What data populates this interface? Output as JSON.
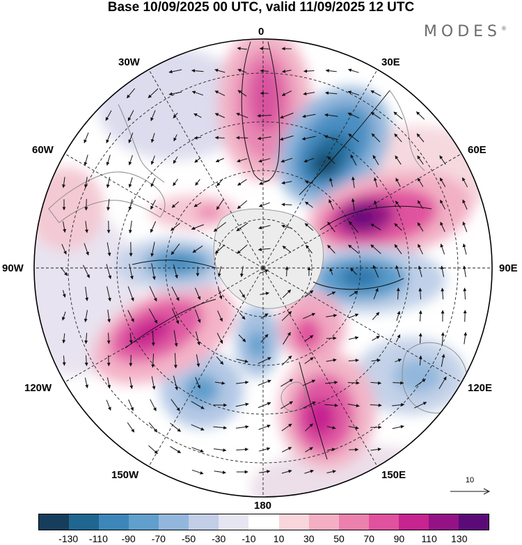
{
  "title": "Base 10/09/2025 00 UTC, valid 11/09/2025 12 UTC",
  "brand": "MODES",
  "brand_mark": "®",
  "longitude_labels": {
    "lon_0": "0",
    "lon_30e": "30E",
    "lon_60e": "60E",
    "lon_90e": "90E",
    "lon_120e": "120E",
    "lon_150e": "150E",
    "lon_180": "180",
    "lon_150w": "150W",
    "lon_120w": "120W",
    "lon_90w": "90W",
    "lon_60w": "60W",
    "lon_30w": "30W"
  },
  "wind_scale_label": "10",
  "colorbar": {
    "colors": [
      "#163d5c",
      "#1f6690",
      "#3d86b9",
      "#619fcc",
      "#93b7dc",
      "#c1cee6",
      "#e6e5f2",
      "#ffffff",
      "#f9d6dc",
      "#f4afc4",
      "#ec81ae",
      "#e0519e",
      "#c6248f",
      "#941285",
      "#5b0b78"
    ],
    "tick_labels": [
      "-130",
      "-110",
      "-90",
      "-70",
      "-50",
      "-30",
      "-10",
      "10",
      "30",
      "50",
      "70",
      "90",
      "110",
      "130"
    ]
  },
  "icons": [
    "polar-map",
    "wind-vector-icon",
    "wind-scale-arrow-icon"
  ]
}
